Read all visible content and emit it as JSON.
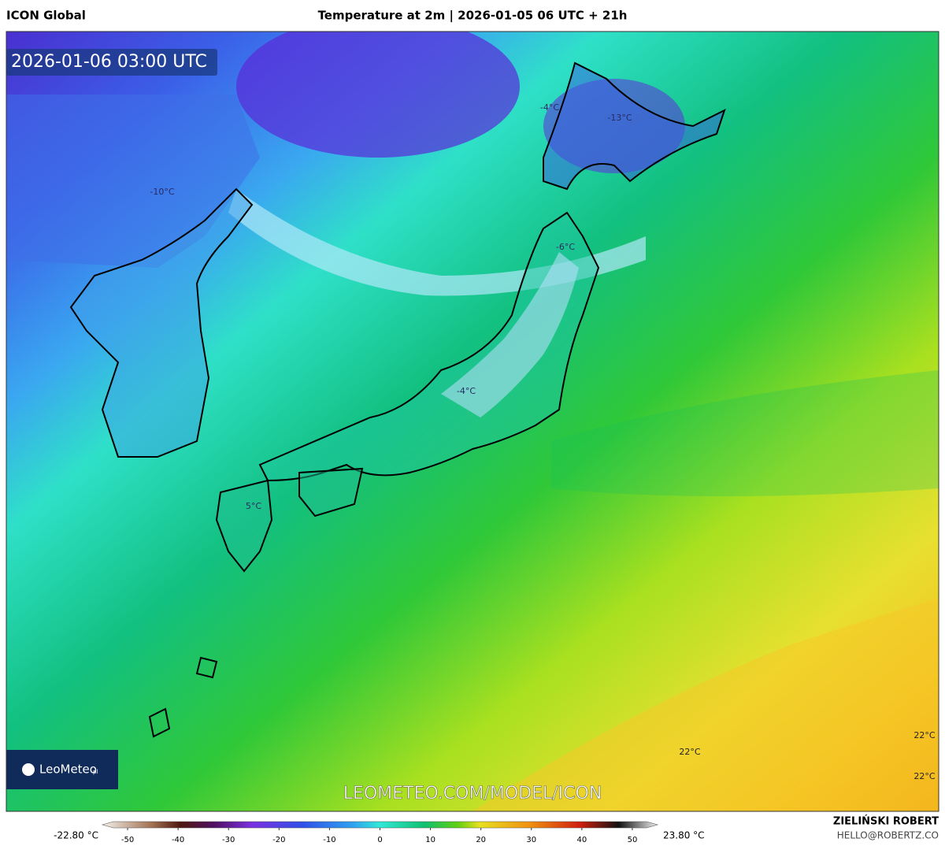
{
  "header": {
    "left": "ICON Global",
    "title": "Temperature at 2m | 2026-01-05 06 UTC + 21h"
  },
  "map": {
    "timestamp": "2026-01-06 03:00 UTC",
    "labels": [
      "-4°C",
      "-13°C",
      "-10°C",
      "-6°C",
      "-4°C",
      "5°C",
      "22°C",
      "22°C",
      "22°C"
    ],
    "logo": "LeoMeteo",
    "logo_suffix": "pl",
    "watermark": "LEOMETEO.COM/MODEL/ICON"
  },
  "colorbar": {
    "min_label": "-22.80 °C",
    "max_label": "23.80 °C",
    "range": [
      -55,
      55
    ],
    "ticks": [
      -50,
      -40,
      -30,
      -20,
      -10,
      0,
      10,
      20,
      30,
      40,
      50
    ]
  },
  "footer": {
    "author": "ZIELIŃSKI ROBERT",
    "email": "HELLO@ROBERTZ.CO"
  }
}
